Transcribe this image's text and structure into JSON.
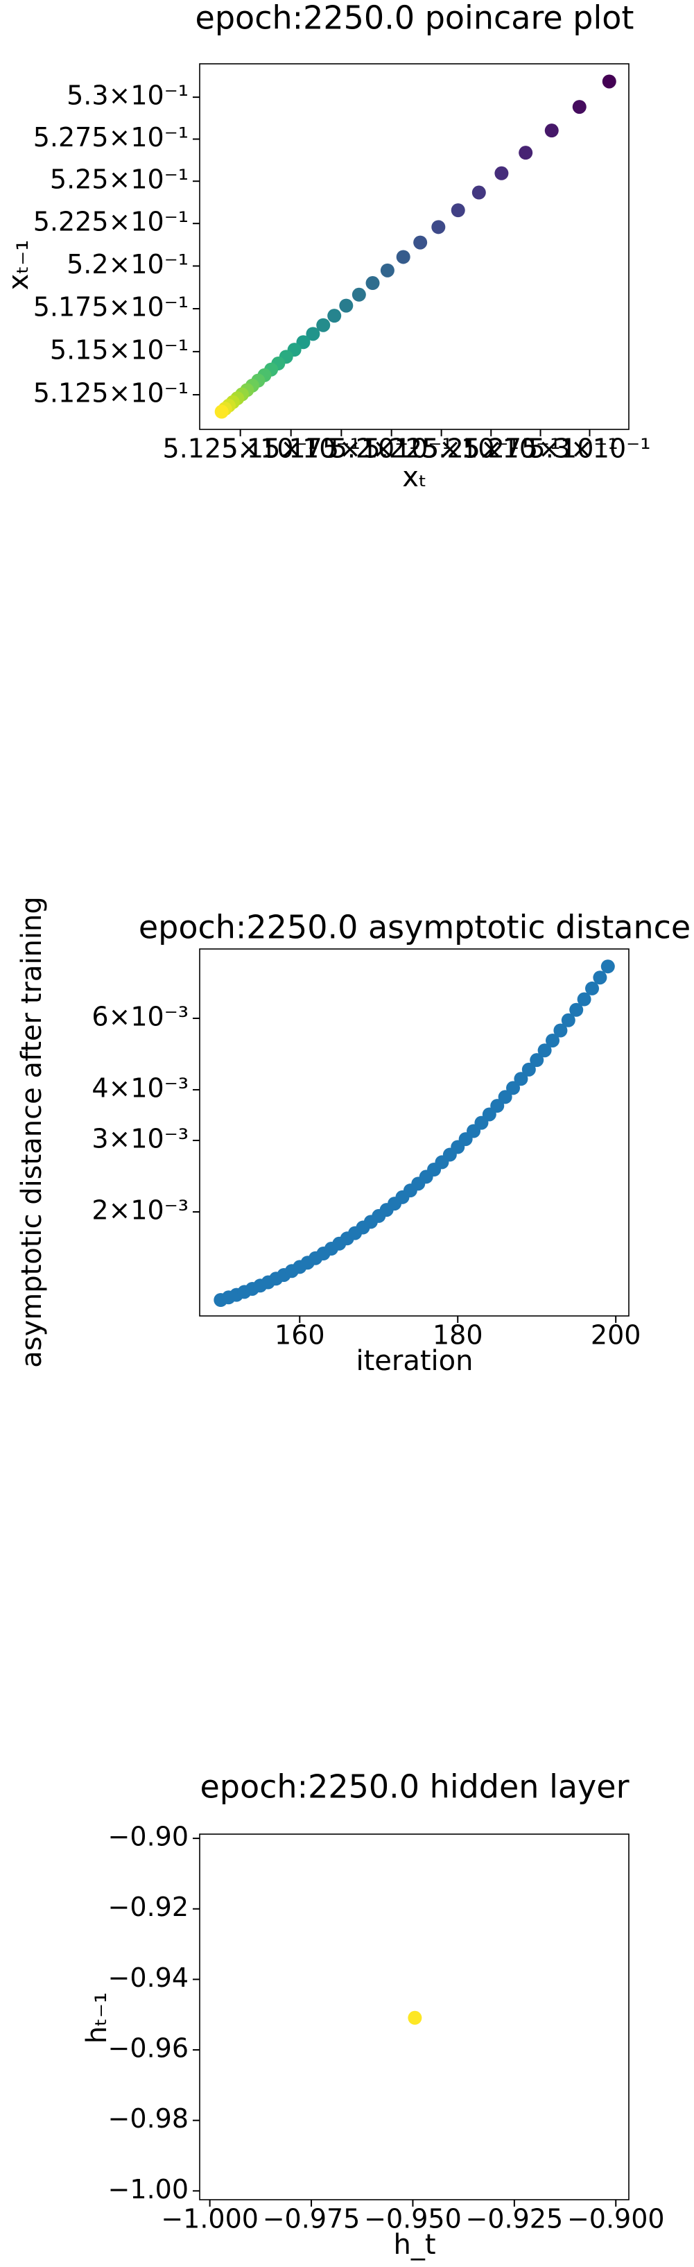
{
  "chart_data": [
    {
      "type": "scatter",
      "title": "epoch:2250.0 poincare plot",
      "xlabel": "xₜ",
      "ylabel": "xₜ₋₁",
      "xlog": true,
      "ylog": true,
      "cmap": "viridis",
      "x": [
        0.531,
        0.52948,
        0.52807,
        0.52675,
        0.52553,
        0.52439,
        0.52334,
        0.52235,
        0.52144,
        0.52059,
        0.5198,
        0.51906,
        0.51838,
        0.51774,
        0.51715,
        0.5166,
        0.51609,
        0.51561,
        0.51517,
        0.51476,
        0.51437,
        0.51402,
        0.51369,
        0.51338,
        0.51309,
        0.51283,
        0.51258,
        0.51235,
        0.51213,
        0.51193,
        0.51175,
        0.51158
      ],
      "values": [
        0.53094,
        0.52942,
        0.52801,
        0.52669,
        0.52547,
        0.52433,
        0.52328,
        0.52229,
        0.52138,
        0.52053,
        0.51974,
        0.519,
        0.51832,
        0.51768,
        0.51709,
        0.51654,
        0.51603,
        0.51555,
        0.51511,
        0.5147,
        0.51431,
        0.51396,
        0.51363,
        0.51332,
        0.51303,
        0.51277,
        0.51252,
        0.51229,
        0.51207,
        0.51187,
        0.51169,
        0.51152
      ],
      "xlim": [
        0.5105,
        0.532
      ],
      "ylim": [
        0.5105,
        0.532
      ],
      "xticks": [
        {
          "value": 0.5125,
          "label": "5.125×10⁻¹"
        },
        {
          "value": 0.515,
          "label": "5.15×10⁻¹"
        },
        {
          "value": 0.5175,
          "label": "5.175×10⁻¹"
        },
        {
          "value": 0.52,
          "label": "5.2×10⁻¹"
        },
        {
          "value": 0.5225,
          "label": "5.225×10⁻¹"
        },
        {
          "value": 0.525,
          "label": "5.25×10⁻¹"
        },
        {
          "value": 0.5275,
          "label": "5.275×10⁻¹"
        },
        {
          "value": 0.53,
          "label": "5.3×10⁻¹"
        }
      ],
      "yticks": [
        {
          "value": 0.5125,
          "label": "5.125×10⁻¹"
        },
        {
          "value": 0.515,
          "label": "5.15×10⁻¹"
        },
        {
          "value": 0.5175,
          "label": "5.175×10⁻¹"
        },
        {
          "value": 0.52,
          "label": "5.2×10⁻¹"
        },
        {
          "value": 0.5225,
          "label": "5.225×10⁻¹"
        },
        {
          "value": 0.525,
          "label": "5.25×10⁻¹"
        },
        {
          "value": 0.5275,
          "label": "5.275×10⁻¹"
        },
        {
          "value": 0.53,
          "label": "5.3×10⁻¹"
        }
      ]
    },
    {
      "type": "scatter",
      "title": "epoch:2250.0 asymptotic distance",
      "xlabel": "iteration",
      "ylabel": "asymptotic distance after training",
      "ylog": true,
      "color": "#1f77b4",
      "x": [
        150,
        151,
        152,
        153,
        154,
        155,
        156,
        157,
        158,
        159,
        160,
        161,
        162,
        163,
        164,
        165,
        166,
        167,
        168,
        169,
        170,
        171,
        172,
        173,
        174,
        175,
        176,
        177,
        178,
        179,
        180,
        181,
        182,
        183,
        184,
        185,
        186,
        187,
        188,
        189,
        190,
        191,
        192,
        193,
        194,
        195,
        196,
        197,
        198,
        199
      ],
      "values": [
        0.001213,
        0.001231,
        0.001249,
        0.00127,
        0.001292,
        0.001316,
        0.001341,
        0.001369,
        0.001398,
        0.00143,
        0.001463,
        0.001499,
        0.001538,
        0.001579,
        0.001623,
        0.00167,
        0.00172,
        0.001773,
        0.00183,
        0.00189,
        0.001954,
        0.002023,
        0.002096,
        0.002174,
        0.002258,
        0.002347,
        0.002441,
        0.002543,
        0.002651,
        0.002767,
        0.00289,
        0.003023,
        0.003164,
        0.003316,
        0.003478,
        0.003652,
        0.003839,
        0.00404,
        0.004255,
        0.004486,
        0.004734,
        0.005001,
        0.00529,
        0.0056,
        0.005934,
        0.006296,
        0.006685,
        0.007108,
        0.007562,
        0.008054
      ],
      "xlim": [
        147.34,
        201.65
      ],
      "ylim": [
        0.001108,
        0.008894
      ],
      "xticks": [
        160,
        180,
        200
      ],
      "yticks": [
        {
          "value": 0.002,
          "label": "2×10⁻³"
        },
        {
          "value": 0.003,
          "label": "3×10⁻³"
        },
        {
          "value": 0.004,
          "label": "4×10⁻³"
        },
        {
          "value": 0.006,
          "label": "6×10⁻³"
        }
      ]
    },
    {
      "type": "scatter",
      "title": "epoch:2250.0 hidden layer",
      "xlabel": "h_t",
      "ylabel": "hₜ₋₁",
      "color": "#fde725",
      "x": [
        -0.9495
      ],
      "values": [
        -0.9509
      ],
      "xlim": [
        -1.0025,
        -0.8968
      ],
      "ylim": [
        -1.0025,
        -0.8988
      ],
      "xticks": [
        {
          "value": -1.0,
          "label": "−1.000"
        },
        {
          "value": -0.975,
          "label": "−0.975"
        },
        {
          "value": -0.95,
          "label": "−0.950"
        },
        {
          "value": -0.925,
          "label": "−0.925"
        },
        {
          "value": -0.9,
          "label": "−0.900"
        }
      ],
      "yticks": [
        {
          "value": -1.0,
          "label": "−1.00"
        },
        {
          "value": -0.98,
          "label": "−0.98"
        },
        {
          "value": -0.96,
          "label": "−0.96"
        },
        {
          "value": -0.94,
          "label": "−0.94"
        },
        {
          "value": -0.92,
          "label": "−0.92"
        },
        {
          "value": -0.9,
          "label": "−0.90"
        }
      ]
    }
  ]
}
